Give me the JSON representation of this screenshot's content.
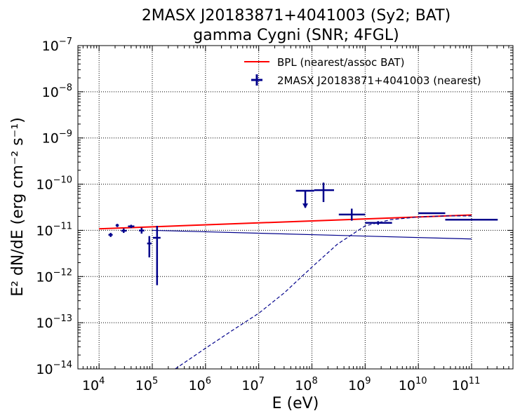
{
  "chart_data": {
    "type": "scatter",
    "title_line1": "2MASX J20183871+4041003 (Sy2; BAT)",
    "title_line2": "gamma Cygni (SNR; 4FGL)",
    "xlabel": "E (eV)",
    "ylabel": "E² dN/dE (erg cm⁻² s⁻¹)",
    "xscale": "log",
    "yscale": "log",
    "xlim": [
      4000,
      600000000000
    ],
    "ylim": [
      1e-14,
      1e-07
    ],
    "grid": true,
    "legend_placement": "top-right",
    "x_ticks": [
      {
        "base": "10",
        "exp": "4",
        "value": 10000
      },
      {
        "base": "10",
        "exp": "5",
        "value": 100000
      },
      {
        "base": "10",
        "exp": "6",
        "value": 1000000
      },
      {
        "base": "10",
        "exp": "7",
        "value": 10000000
      },
      {
        "base": "10",
        "exp": "8",
        "value": 100000000
      },
      {
        "base": "10",
        "exp": "9",
        "value": 1000000000
      },
      {
        "base": "10",
        "exp": "10",
        "value": 10000000000
      },
      {
        "base": "10",
        "exp": "11",
        "value": 100000000000
      }
    ],
    "y_ticks": [
      {
        "base": "10",
        "exp": "−14",
        "value": 1e-14
      },
      {
        "base": "10",
        "exp": "−13",
        "value": 1e-13
      },
      {
        "base": "10",
        "exp": "−12",
        "value": 1e-12
      },
      {
        "base": "10",
        "exp": "−11",
        "value": 1e-11
      },
      {
        "base": "10",
        "exp": "−10",
        "value": 1e-10
      },
      {
        "base": "10",
        "exp": "−9",
        "value": 1e-09
      },
      {
        "base": "10",
        "exp": "−8",
        "value": 1e-08
      },
      {
        "base": "10",
        "exp": "−7",
        "value": 1e-07
      }
    ],
    "series": [
      {
        "name": "BPL (nearest/assoc BAT)",
        "kind": "line",
        "color": "#ff0000",
        "x": [
          10000,
          100000000000
        ],
        "y": [
          1.08e-11,
          2.15e-11
        ]
      },
      {
        "name": "2MASX J20183871+4041003 (nearest)",
        "kind": "errorbar",
        "color": "#00008b",
        "points": [
          {
            "x": 16500,
            "xlo": 15000,
            "xhi": 18000,
            "y": 8e-12,
            "ylo": 7.2e-12,
            "yhi": 8.8e-12,
            "upper_limit": false
          },
          {
            "x": 22000,
            "xlo": 20500,
            "xhi": 23500,
            "y": 1.28e-11,
            "ylo": 1.18e-11,
            "yhi": 1.38e-11,
            "upper_limit": false
          },
          {
            "x": 29000,
            "xlo": 26000,
            "xhi": 33000,
            "y": 9.8e-12,
            "ylo": 8.8e-12,
            "yhi": 1.1e-11,
            "upper_limit": false
          },
          {
            "x": 40000,
            "xlo": 35000,
            "xhi": 46000,
            "y": 1.22e-11,
            "ylo": 1.12e-11,
            "yhi": 1.32e-11,
            "upper_limit": false
          },
          {
            "x": 63000,
            "xlo": 56000,
            "xhi": 71000,
            "y": 9.9e-12,
            "ylo": 8.5e-12,
            "yhi": 1.14e-11,
            "upper_limit": false
          },
          {
            "x": 88000,
            "xlo": 80000,
            "xhi": 97000,
            "y": 5.2e-12,
            "ylo": 2.6e-12,
            "yhi": 7.5e-12,
            "upper_limit": false
          },
          {
            "x": 123000,
            "xlo": 103000,
            "xhi": 143000,
            "y": 6.9e-12,
            "ylo": 6.5e-13,
            "yhi": 1.25e-11,
            "upper_limit": false
          }
        ]
      },
      {
        "name": "",
        "kind": "errorbar",
        "color": "#00008b",
        "points": [
          {
            "x": 75000000,
            "xlo": 50000000,
            "xhi": 110000000,
            "y": 7.2e-11,
            "ylo": 3.1e-11,
            "yhi": 7.2e-11,
            "upper_limit": true
          },
          {
            "x": 165000000,
            "xlo": 110000000,
            "xhi": 260000000,
            "y": 7.4e-11,
            "ylo": 4.1e-11,
            "yhi": 1.08e-10,
            "upper_limit": false
          },
          {
            "x": 560000000,
            "xlo": 320000000,
            "xhi": 1000000000,
            "y": 2.2e-11,
            "ylo": 1.62e-11,
            "yhi": 2.95e-11,
            "upper_limit": false
          },
          {
            "x": 1750000000,
            "xlo": 1000000000,
            "xhi": 3200000000,
            "y": 1.45e-11,
            "ylo": 1.32e-11,
            "yhi": 1.58e-11,
            "upper_limit": false
          },
          {
            "x": 17500000000,
            "xlo": 10000000000,
            "xhi": 32000000000,
            "y": 2.35e-11,
            "ylo": 2.28e-11,
            "yhi": 2.43e-11,
            "upper_limit": false
          },
          {
            "x": 95000000000,
            "xlo": 32000000000,
            "xhi": 310000000000,
            "y": 1.7e-11,
            "ylo": 1.68e-11,
            "yhi": 1.72e-11,
            "upper_limit": false
          }
        ]
      },
      {
        "name": "",
        "kind": "line",
        "color": "#00008b",
        "x": [
          100000,
          100000000000
        ],
        "y": [
          1e-11,
          6.5e-12
        ]
      },
      {
        "name": "",
        "kind": "curve-dashed",
        "color": "#00008b",
        "x": [
          270000,
          1000000,
          3000000,
          10000000,
          30000000,
          100000000,
          300000000,
          1000000000,
          3000000000,
          10000000000,
          30000000000,
          100000000000
        ],
        "y": [
          1e-14,
          2.8e-14,
          6.5e-14,
          1.6e-13,
          4.4e-13,
          1.6e-12,
          5e-12,
          1.25e-11,
          1.7e-11,
          1.95e-11,
          2.05e-11,
          2.05e-11
        ]
      }
    ]
  }
}
